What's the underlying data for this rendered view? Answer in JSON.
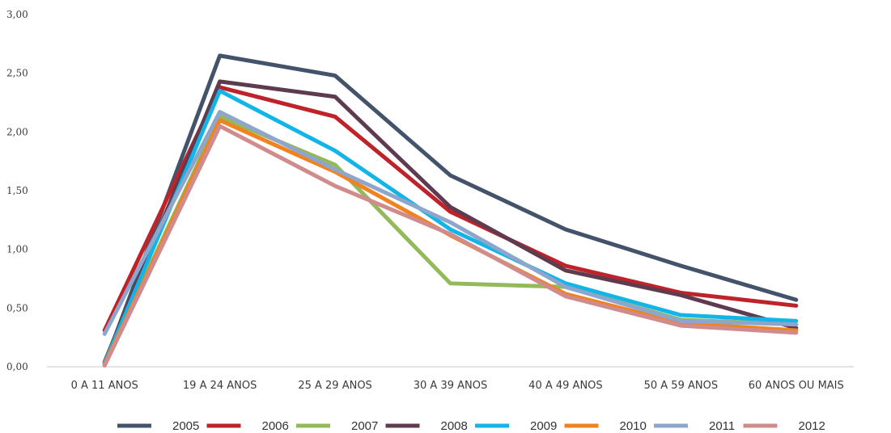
{
  "chart_data": {
    "type": "line",
    "title": "",
    "xlabel": "",
    "ylabel": "",
    "ylim": [
      0,
      3
    ],
    "yticks": [
      "0,00",
      "0,50",
      "1,00",
      "1,50",
      "2,00",
      "2,50",
      "3,00"
    ],
    "categories": [
      "0 A 11 ANOS",
      "19 A 24 ANOS",
      "25 A 29 ANOS",
      "30 A 39 ANOS",
      "40 A 49 ANOS",
      "50 A 59 ANOS",
      "60 ANOS OU MAIS"
    ],
    "grid": false,
    "legend_position": "bottom",
    "series": [
      {
        "name": "2005",
        "color": "#43546A",
        "values": [
          0.02,
          2.65,
          2.48,
          1.63,
          1.17,
          0.86,
          0.57
        ]
      },
      {
        "name": "2006",
        "color": "#C0222A",
        "values": [
          0.31,
          2.38,
          2.13,
          1.32,
          0.86,
          0.63,
          0.52
        ]
      },
      {
        "name": "2007",
        "color": "#93B95A",
        "values": [
          0.03,
          2.13,
          1.72,
          0.71,
          0.68,
          0.4,
          0.36
        ]
      },
      {
        "name": "2008",
        "color": "#5E3B4F",
        "values": [
          0.04,
          2.43,
          2.3,
          1.36,
          0.82,
          0.61,
          0.33
        ]
      },
      {
        "name": "2009",
        "color": "#13B5E8",
        "values": [
          0.03,
          2.35,
          1.84,
          1.17,
          0.71,
          0.44,
          0.39
        ]
      },
      {
        "name": "2010",
        "color": "#F18220",
        "values": [
          0.02,
          2.1,
          1.66,
          1.12,
          0.62,
          0.37,
          0.31
        ]
      },
      {
        "name": "2011",
        "color": "#8EA6CC",
        "values": [
          0.28,
          2.17,
          1.68,
          1.23,
          0.68,
          0.39,
          0.36
        ]
      },
      {
        "name": "2012",
        "color": "#D08C8C",
        "values": [
          0.01,
          2.05,
          1.54,
          1.13,
          0.6,
          0.35,
          0.29
        ]
      }
    ]
  }
}
